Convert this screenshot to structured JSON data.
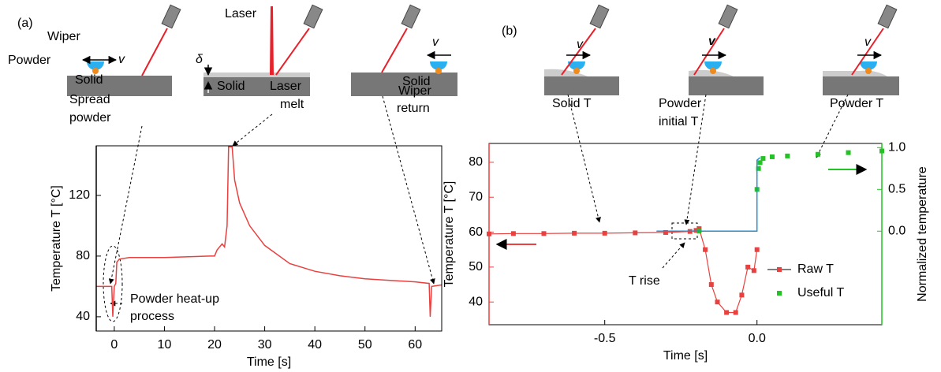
{
  "chart_data": [
    {
      "type": "line",
      "panel": "(a)",
      "xlabel": "Time [s]",
      "ylabel": "Temperature T [°C]",
      "ylabel_color": "#000000",
      "xlim": [
        -3.6,
        65.3
      ],
      "xticks": [
        0,
        10,
        20,
        30,
        40,
        50,
        60
      ],
      "ylim": [
        30.6,
        152.7
      ],
      "yticks": [
        40,
        80,
        120
      ],
      "series": [
        {
          "color": "#e8413f",
          "x": [
            -3.6,
            -0.5,
            -0.3,
            0,
            0.3,
            0.5,
            1,
            3,
            10,
            19,
            20,
            20.5,
            21.5,
            22,
            22.5,
            22.8,
            23.5,
            24,
            25,
            27,
            30,
            35,
            40,
            45,
            50,
            55,
            60,
            62.8,
            63,
            63.3,
            65.3
          ],
          "values": [
            60,
            60,
            40,
            60,
            62,
            76,
            78,
            79,
            79,
            80,
            80,
            84,
            88,
            86,
            100,
            152,
            152,
            130,
            115,
            100,
            87,
            75,
            70,
            67,
            65,
            64,
            63,
            62,
            40,
            60,
            61
          ]
        }
      ],
      "annotations": [
        "Wiper",
        "Powder",
        "v",
        "Solid",
        "Spread",
        "powder",
        "Laser",
        "δ",
        "Solid",
        "Laser",
        "melt",
        "v",
        "Solid",
        "Wiper",
        "return",
        "Powder heat-up",
        "process"
      ]
    },
    {
      "type": "line",
      "panel": "(b)",
      "xlabel": "Time [s]",
      "ylabel": "Temperature T [°C]",
      "ylabel_color": "#e8413f",
      "y2label": "Normalized temperature",
      "y2label_color": "#22c322",
      "xlim": [
        -0.88,
        0.41
      ],
      "xticks": [
        -0.5,
        {
          "value": 0,
          "label": "0.0"
        }
      ],
      "ylim": [
        33.5,
        85.4
      ],
      "yticks": [
        40,
        50,
        60,
        70,
        80
      ],
      "y2lim": [
        -1.12,
        1.05
      ],
      "y2ticks": [
        {
          "value": 0,
          "label": "0.0"
        },
        0.5,
        {
          "value": 1,
          "label": "1.0"
        }
      ],
      "legend": "lower right",
      "series": [
        {
          "name": "Raw T",
          "color": "#e8413f",
          "marker": "square",
          "x": [
            -0.88,
            -0.8,
            -0.7,
            -0.6,
            -0.5,
            -0.4,
            -0.3,
            -0.22,
            -0.2,
            -0.19,
            -0.17,
            -0.15,
            -0.13,
            -0.1,
            -0.07,
            -0.05,
            -0.03,
            -0.01,
            0.0
          ],
          "values": [
            59.5,
            59.6,
            59.6,
            59.7,
            59.7,
            59.8,
            59.9,
            60.2,
            60.5,
            61,
            55,
            45,
            40,
            37,
            37,
            42,
            50,
            49,
            55
          ]
        },
        {
          "name": "Useful T",
          "color": "#22c322",
          "marker": "square",
          "axis": "y2",
          "line": false,
          "x": [
            -0.19,
            0.0,
            0.005,
            0.01,
            0.02,
            0.05,
            0.1,
            0.2,
            0.3,
            0.41
          ],
          "values": [
            0.0,
            0.5,
            0.75,
            0.82,
            0.87,
            0.89,
            0.9,
            0.92,
            0.94,
            0.96
          ]
        },
        {
          "color": "#1f8fd6",
          "axis": "y2",
          "x": [
            -0.33,
            0.0,
            0.0,
            0.01
          ],
          "values": [
            0.0,
            0.0,
            0.85,
            0.88
          ]
        }
      ],
      "annotations": [
        "v",
        "Solid T",
        "v",
        "Powder",
        "initial T",
        "v",
        "Powder T",
        "T rise"
      ]
    }
  ]
}
